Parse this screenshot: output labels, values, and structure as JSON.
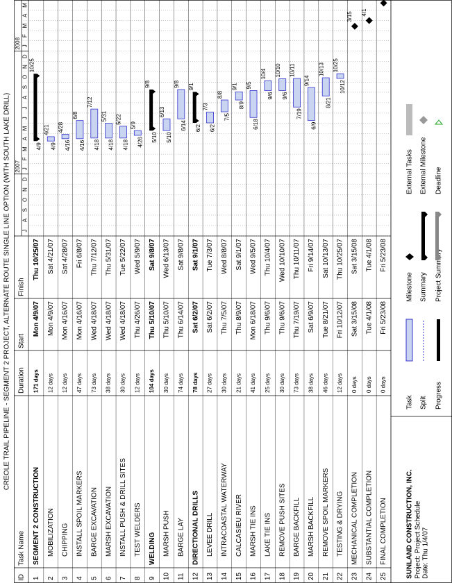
{
  "header": {
    "title": "CREOLE TRAIL PIPELINE - SEGMENT 2 PROJECT, ALTERNATE ROUTE SINGLE LINE OPTION (WITH SOUTH LAKE DRILL)",
    "columns": [
      "ID",
      "Task Name",
      "Duration",
      "Start",
      "Finish"
    ]
  },
  "timescale": {
    "years": [
      "2007",
      "2008"
    ],
    "months": [
      "J",
      "A",
      "S",
      "O",
      "N",
      "D",
      "J",
      "F",
      "M",
      "A",
      "M",
      "J",
      "J",
      "A",
      "S",
      "O",
      "N",
      "D",
      "J",
      "F",
      "M",
      "A",
      "M"
    ]
  },
  "tasks": [
    {
      "id": "1",
      "name": "SEGMENT 2 CONSTRUCTION",
      "duration": "171 days",
      "start": "Mon 4/9/07",
      "finish": "Thu 10/25/07",
      "summary": true,
      "bar_labels": [
        "4/9",
        "10/25"
      ]
    },
    {
      "id": "2",
      "name": "MOBILIZATION",
      "duration": "12 days",
      "start": "Mon 4/9/07",
      "finish": "Sat 4/21/07",
      "bar_labels": [
        "4/9",
        "4/21"
      ]
    },
    {
      "id": "3",
      "name": "CHIPPING",
      "duration": "12 days",
      "start": "Mon 4/16/07",
      "finish": "Sat 4/28/07",
      "bar_labels": [
        "4/16",
        "4/28"
      ]
    },
    {
      "id": "4",
      "name": "INSTALL SPOIL MARKERS",
      "duration": "47 days",
      "start": "Mon 4/16/07",
      "finish": "Fri 6/8/07",
      "bar_labels": [
        "4/16",
        "6/8"
      ]
    },
    {
      "id": "5",
      "name": "BARGE EXCAVATION",
      "duration": "73 days",
      "start": "Wed 4/18/07",
      "finish": "Thu 7/12/07",
      "bar_labels": [
        "4/18",
        "7/12"
      ]
    },
    {
      "id": "6",
      "name": "MARSH EXCAVATION",
      "duration": "38 days",
      "start": "Wed 4/18/07",
      "finish": "Thu 5/31/07",
      "bar_labels": [
        "4/18",
        "5/31"
      ]
    },
    {
      "id": "7",
      "name": "INSTALL PUSH & DRILL SITES",
      "duration": "30 days",
      "start": "Wed 4/18/07",
      "finish": "Tue 5/22/07",
      "bar_labels": [
        "4/18",
        "5/22"
      ]
    },
    {
      "id": "8",
      "name": "TEST WELDERS",
      "duration": "12 days",
      "start": "Thu 4/26/07",
      "finish": "Wed 5/9/07",
      "bar_labels": [
        "4/26",
        "5/9"
      ]
    },
    {
      "id": "9",
      "name": "WELDING",
      "duration": "104 days",
      "start": "Thu 5/10/07",
      "finish": "Sat 9/8/07",
      "summary": true,
      "bar_labels": [
        "5/10",
        "9/8"
      ]
    },
    {
      "id": "10",
      "name": "MARSH PUSH",
      "duration": "30 days",
      "start": "Thu 5/10/07",
      "finish": "Wed 6/13/07",
      "bar_labels": [
        "5/10",
        "6/13"
      ]
    },
    {
      "id": "11",
      "name": "BARGE LAY",
      "duration": "74 days",
      "start": "Thu 6/14/07",
      "finish": "Sat 9/8/07",
      "bar_labels": [
        "6/14",
        "9/8"
      ]
    },
    {
      "id": "12",
      "name": "DIRECTIONAL DRILLS",
      "duration": "78 days",
      "start": "Sat 6/2/07",
      "finish": "Sat 9/1/07",
      "summary": true,
      "bar_labels": [
        "6/2",
        "9/1"
      ]
    },
    {
      "id": "13",
      "name": "LEVEE DRILL",
      "duration": "27 days",
      "start": "Sat 6/2/07",
      "finish": "Tue 7/3/07",
      "bar_labels": [
        "6/2",
        "7/3"
      ]
    },
    {
      "id": "14",
      "name": "INTRACOASTAL WATERWAY",
      "duration": "30 days",
      "start": "Thu 7/5/07",
      "finish": "Wed 8/8/07",
      "bar_labels": [
        "7/5",
        "8/8"
      ]
    },
    {
      "id": "15",
      "name": "CALCASIEU RIVER",
      "duration": "21 days",
      "start": "Thu 8/9/07",
      "finish": "Sat 9/1/07",
      "bar_labels": [
        "8/9",
        "9/1"
      ]
    },
    {
      "id": "16",
      "name": "MARSH TIE INS",
      "duration": "41 days",
      "start": "Mon 6/18/07",
      "finish": "Wed 9/5/07",
      "bar_labels": [
        "6/18",
        "9/5"
      ]
    },
    {
      "id": "17",
      "name": "LAKE TIE INS",
      "duration": "25 days",
      "start": "Thu 9/6/07",
      "finish": "Thu 10/4/07",
      "bar_labels": [
        "9/6",
        "10/4"
      ]
    },
    {
      "id": "18",
      "name": "REMOVE PUSH SITES",
      "duration": "30 days",
      "start": "Thu 9/6/07",
      "finish": "Wed 10/10/07",
      "bar_labels": [
        "9/6",
        "10/10"
      ]
    },
    {
      "id": "19",
      "name": "BARGE BACKFILL",
      "duration": "73 days",
      "start": "Thu 7/19/07",
      "finish": "Thu 10/11/07",
      "bar_labels": [
        "7/19",
        "10/11"
      ]
    },
    {
      "id": "20",
      "name": "MARSH BACKFILL",
      "duration": "38 days",
      "start": "Sat 6/9/07",
      "finish": "Fri 9/14/07",
      "bar_labels": [
        "6/9",
        "9/14"
      ]
    },
    {
      "id": "21",
      "name": "REMOVE SPOIL MARKERS",
      "duration": "46 days",
      "start": "Tue 8/21/07",
      "finish": "Sat 10/13/07",
      "bar_labels": [
        "8/21",
        "10/13"
      ]
    },
    {
      "id": "22",
      "name": "TESTING & DRYING",
      "duration": "12 days",
      "start": "Fri 10/12/07",
      "finish": "Thu 10/25/07",
      "bar_labels": [
        "10/12",
        "10/25"
      ]
    },
    {
      "id": "23",
      "name": "MECHANICAL COMPLETION",
      "duration": "0 days",
      "start": "Sat 3/15/08",
      "finish": "Sat 3/15/08",
      "bar_labels": [
        "3/15"
      ]
    },
    {
      "id": "24",
      "name": "SUBSTANTIAL COMPLETION",
      "duration": "0 days",
      "start": "Tue 4/1/08",
      "finish": "Tue 4/1/08",
      "bar_labels": [
        "4/1"
      ]
    },
    {
      "id": "25",
      "name": "FINAL COMPLETION",
      "duration": "0 days",
      "start": "Fri 5/23/08",
      "finish": "Fri 5/23/08",
      "bar_labels": []
    }
  ],
  "legend": {
    "company": "SUNLAND CONSTRUCTION, INC.",
    "project": "Project: Project Schedule",
    "date": "Date: Thu 1/4/07",
    "items": [
      "Task",
      "Split",
      "Progress",
      "Milestone",
      "Summary",
      "Project Summary",
      "External Tasks",
      "External Milestone",
      "Deadline"
    ]
  }
}
